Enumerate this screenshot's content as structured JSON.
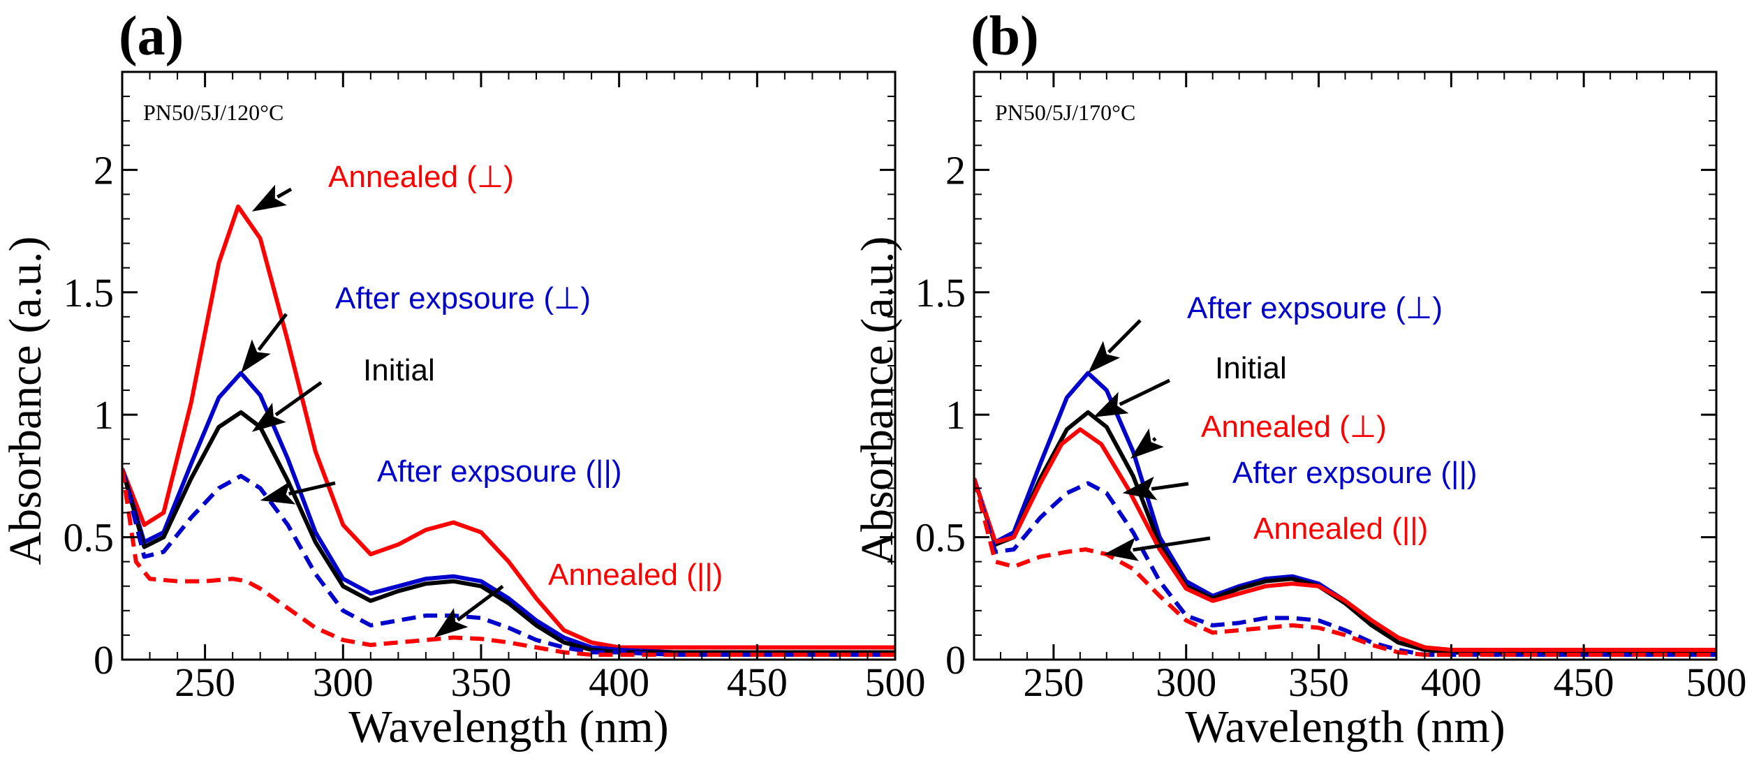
{
  "chart_data": [
    {
      "type": "line",
      "panel_label": "(a)",
      "sample_label": "PN50/5J/120°C",
      "xlabel": "Wavelength (nm)",
      "ylabel": "Absorbance (a.u.)",
      "xlim": [
        220,
        500
      ],
      "ylim": [
        0,
        2.4
      ],
      "xticks": [
        250,
        300,
        350,
        400,
        450,
        500
      ],
      "xtick_labels": [
        "250",
        "300",
        "350",
        "400",
        "450",
        "500"
      ],
      "yticks": [
        0,
        0.5,
        1,
        1.5,
        2
      ],
      "ytick_labels": [
        "0",
        "0.5",
        "1",
        "1.5",
        "2"
      ],
      "series": [
        {
          "name": "Annealed (⊥)",
          "color": "#ff0000",
          "dash": false,
          "x": [
            220,
            228,
            235,
            245,
            255,
            262,
            270,
            280,
            290,
            300,
            310,
            320,
            330,
            340,
            350,
            360,
            370,
            380,
            390,
            400,
            420,
            450,
            500
          ],
          "y": [
            0.78,
            0.55,
            0.6,
            1.05,
            1.62,
            1.85,
            1.72,
            1.3,
            0.85,
            0.55,
            0.43,
            0.47,
            0.53,
            0.56,
            0.52,
            0.4,
            0.25,
            0.12,
            0.07,
            0.05,
            0.05,
            0.05,
            0.05
          ]
        },
        {
          "name": "After expsoure (⊥)",
          "color": "#0000cc",
          "dash": false,
          "x": [
            220,
            228,
            235,
            245,
            255,
            263,
            270,
            280,
            290,
            300,
            310,
            320,
            330,
            340,
            350,
            360,
            370,
            380,
            390,
            400,
            420,
            450,
            500
          ],
          "y": [
            0.78,
            0.48,
            0.52,
            0.8,
            1.07,
            1.17,
            1.08,
            0.82,
            0.52,
            0.33,
            0.27,
            0.3,
            0.33,
            0.34,
            0.32,
            0.25,
            0.16,
            0.09,
            0.05,
            0.04,
            0.03,
            0.03,
            0.03
          ]
        },
        {
          "name": "Initial",
          "color": "#000000",
          "dash": false,
          "x": [
            220,
            228,
            235,
            245,
            255,
            263,
            270,
            280,
            290,
            300,
            310,
            320,
            330,
            340,
            350,
            360,
            370,
            380,
            390,
            400,
            420,
            450,
            500
          ],
          "y": [
            0.78,
            0.46,
            0.5,
            0.74,
            0.95,
            1.01,
            0.95,
            0.73,
            0.48,
            0.3,
            0.24,
            0.28,
            0.31,
            0.32,
            0.3,
            0.23,
            0.14,
            0.07,
            0.04,
            0.03,
            0.03,
            0.03,
            0.03
          ]
        },
        {
          "name": "After expsoure (||)",
          "color": "#0000cc",
          "dash": true,
          "x": [
            220,
            228,
            235,
            245,
            255,
            263,
            270,
            280,
            290,
            300,
            310,
            320,
            330,
            340,
            350,
            360,
            370,
            380,
            390,
            400,
            420,
            450,
            500
          ],
          "y": [
            0.78,
            0.42,
            0.44,
            0.58,
            0.7,
            0.75,
            0.7,
            0.55,
            0.35,
            0.2,
            0.14,
            0.16,
            0.18,
            0.18,
            0.17,
            0.13,
            0.08,
            0.05,
            0.03,
            0.03,
            0.02,
            0.02,
            0.02
          ]
        },
        {
          "name": "Annealed (||)",
          "color": "#ff0000",
          "dash": true,
          "x": [
            220,
            225,
            230,
            240,
            250,
            260,
            265,
            270,
            280,
            290,
            300,
            310,
            320,
            330,
            340,
            350,
            360,
            370,
            380,
            390,
            400,
            420,
            450,
            500
          ],
          "y": [
            0.78,
            0.4,
            0.33,
            0.32,
            0.32,
            0.33,
            0.32,
            0.29,
            0.21,
            0.13,
            0.08,
            0.06,
            0.07,
            0.08,
            0.09,
            0.085,
            0.07,
            0.05,
            0.03,
            0.02,
            0.02,
            0.02,
            0.02,
            0.02
          ]
        }
      ],
      "annotations": [
        {
          "text": "Annealed (⊥)",
          "color": "#ff0000",
          "x": 267,
          "y": 1.83
        },
        {
          "text": "After expsoure (⊥)",
          "color": "#0000cc",
          "x": 263,
          "y": 1.17
        },
        {
          "text": "Initial",
          "color": "#000000",
          "x": 267,
          "y": 0.93
        },
        {
          "text": "After expsoure (||)",
          "color": "#0000cc",
          "x": 270,
          "y": 0.65
        },
        {
          "text": "Annealed (||)",
          "color": "#ff0000",
          "x": 333,
          "y": 0.09
        }
      ]
    },
    {
      "type": "line",
      "panel_label": "(b)",
      "sample_label": "PN50/5J/170°C",
      "xlabel": "Wavelength (nm)",
      "ylabel": "Absorbance (a.u.)",
      "xlim": [
        220,
        500
      ],
      "ylim": [
        0,
        2.4
      ],
      "xticks": [
        250,
        300,
        350,
        400,
        450,
        500
      ],
      "xtick_labels": [
        "250",
        "300",
        "350",
        "400",
        "450",
        "500"
      ],
      "yticks": [
        0,
        0.5,
        1,
        1.5,
        2
      ],
      "ytick_labels": [
        "0",
        "0.5",
        "1",
        "1.5",
        "2"
      ],
      "series": [
        {
          "name": "After expsoure (⊥)",
          "color": "#0000cc",
          "dash": false,
          "x": [
            220,
            228,
            235,
            245,
            255,
            263,
            270,
            280,
            290,
            300,
            310,
            320,
            330,
            340,
            350,
            360,
            370,
            380,
            390,
            400,
            420,
            450,
            500
          ],
          "y": [
            0.74,
            0.48,
            0.52,
            0.8,
            1.07,
            1.17,
            1.1,
            0.85,
            0.5,
            0.32,
            0.26,
            0.3,
            0.33,
            0.34,
            0.31,
            0.24,
            0.15,
            0.07,
            0.04,
            0.03,
            0.02,
            0.02,
            0.02
          ]
        },
        {
          "name": "Initial",
          "color": "#000000",
          "dash": false,
          "x": [
            220,
            228,
            235,
            245,
            255,
            263,
            270,
            280,
            290,
            300,
            310,
            320,
            330,
            340,
            350,
            360,
            370,
            380,
            390,
            400,
            420,
            450,
            500
          ],
          "y": [
            0.74,
            0.47,
            0.5,
            0.74,
            0.94,
            1.01,
            0.95,
            0.75,
            0.47,
            0.3,
            0.25,
            0.29,
            0.32,
            0.33,
            0.3,
            0.23,
            0.14,
            0.07,
            0.04,
            0.03,
            0.03,
            0.03,
            0.03
          ]
        },
        {
          "name": "Annealed (⊥)",
          "color": "#ff0000",
          "dash": false,
          "x": [
            220,
            228,
            235,
            245,
            253,
            260,
            268,
            278,
            290,
            300,
            310,
            320,
            330,
            340,
            350,
            360,
            370,
            380,
            390,
            400,
            420,
            450,
            500
          ],
          "y": [
            0.74,
            0.48,
            0.5,
            0.72,
            0.88,
            0.94,
            0.88,
            0.7,
            0.45,
            0.29,
            0.24,
            0.27,
            0.3,
            0.31,
            0.3,
            0.24,
            0.16,
            0.09,
            0.05,
            0.04,
            0.04,
            0.04,
            0.04
          ]
        },
        {
          "name": "After expsoure (||)",
          "color": "#0000cc",
          "dash": true,
          "x": [
            220,
            228,
            235,
            245,
            255,
            263,
            270,
            280,
            290,
            300,
            310,
            320,
            330,
            340,
            350,
            360,
            370,
            380,
            390,
            400,
            420,
            450,
            500
          ],
          "y": [
            0.74,
            0.44,
            0.45,
            0.58,
            0.68,
            0.72,
            0.68,
            0.52,
            0.32,
            0.18,
            0.14,
            0.15,
            0.17,
            0.17,
            0.16,
            0.12,
            0.07,
            0.04,
            0.02,
            0.02,
            0.02,
            0.02,
            0.02
          ]
        },
        {
          "name": "Annealed (||)",
          "color": "#ff0000",
          "dash": true,
          "x": [
            220,
            228,
            235,
            245,
            255,
            262,
            270,
            280,
            290,
            300,
            310,
            320,
            330,
            340,
            350,
            360,
            370,
            380,
            390,
            400,
            420,
            450,
            500
          ],
          "y": [
            0.74,
            0.4,
            0.38,
            0.42,
            0.44,
            0.45,
            0.43,
            0.37,
            0.26,
            0.16,
            0.11,
            0.12,
            0.13,
            0.14,
            0.13,
            0.1,
            0.06,
            0.03,
            0.02,
            0.02,
            0.02,
            0.02,
            0.02
          ]
        }
      ],
      "annotations": [
        {
          "text": "After expsoure (⊥)",
          "color": "#0000cc",
          "x": 263,
          "y": 1.17
        },
        {
          "text": "Initial",
          "color": "#000000",
          "x": 265,
          "y": 0.99
        },
        {
          "text": "Annealed (⊥)",
          "color": "#ff0000",
          "x": 279,
          "y": 0.82
        },
        {
          "text": "After expsoure (||)",
          "color": "#0000cc",
          "x": 276,
          "y": 0.68
        },
        {
          "text": "Annealed (||)",
          "color": "#ff0000",
          "x": 269,
          "y": 0.43
        }
      ]
    }
  ]
}
